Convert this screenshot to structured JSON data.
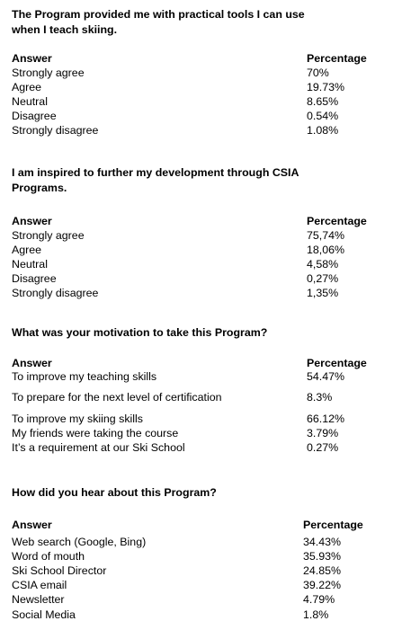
{
  "sections": [
    {
      "question": "The Program provided me with practical tools I can use when I teach skiing.",
      "answer_header": "Answer",
      "percentage_header": "Percentage",
      "rows": [
        {
          "answer": "Strongly agree",
          "percentage": "70%"
        },
        {
          "answer": "Agree",
          "percentage": "19.73%"
        },
        {
          "answer": "Neutral",
          "percentage": "8.65%"
        },
        {
          "answer": "Disagree",
          "percentage": "0.54%"
        },
        {
          "answer": "Strongly disagree",
          "percentage": "1.08%"
        }
      ]
    },
    {
      "question": "I am inspired to further my development through CSIA Programs.",
      "answer_header": "Answer",
      "percentage_header": "Percentage",
      "rows": [
        {
          "answer": "Strongly agree",
          "percentage": "75,74%"
        },
        {
          "answer": "Agree",
          "percentage": "18,06%"
        },
        {
          "answer": "Neutral",
          "percentage": "4,58%"
        },
        {
          "answer": "Disagree",
          "percentage": "0,27%"
        },
        {
          "answer": "Strongly disagree",
          "percentage": "1,35%"
        }
      ]
    },
    {
      "question": "What was your motivation to take this Program?",
      "answer_header": "Answer",
      "percentage_header": "Percentage",
      "rows": [
        {
          "answer": "To improve my teaching skills",
          "percentage": "54.47%"
        },
        {
          "answer": "To prepare for the next level of certification",
          "percentage": "8.3%"
        },
        {
          "answer": "To improve my skiing skills",
          "percentage": "66.12%"
        },
        {
          "answer": "My friends were taking the course",
          "percentage": "3.79%"
        },
        {
          "answer": "It’s a requirement at our Ski School",
          "percentage": "0.27%"
        }
      ]
    },
    {
      "question": "How did you hear about this Program?",
      "answer_header": "Answer",
      "percentage_header": "Percentage",
      "rows": [
        {
          "answer": "Web search (Google, Bing)",
          "percentage": "34.43%"
        },
        {
          "answer": "Word of mouth",
          "percentage": "35.93%"
        },
        {
          "answer": "Ski School Director",
          "percentage": "24.85%"
        },
        {
          "answer": "CSIA email",
          "percentage": "39.22%"
        },
        {
          "answer": "Newsletter",
          "percentage": "4.79%"
        },
        {
          "answer": "Social Media",
          "percentage": "1.8%"
        }
      ]
    }
  ]
}
